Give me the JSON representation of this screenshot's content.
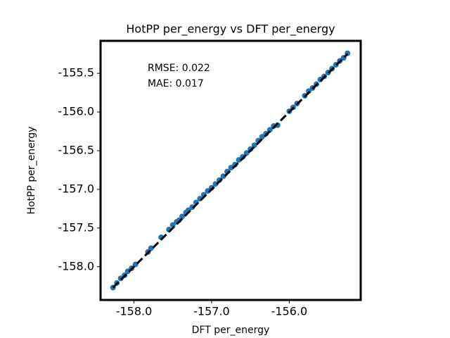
{
  "chart_data": {
    "type": "scatter",
    "title": "HotPP per_energy vs DFT per_energy",
    "x_label": "DFT  per_energy",
    "y_label": "HotPP per_energy",
    "annotations": [
      "RMSE: 0.022",
      "MAE: 0.017"
    ],
    "color": "#1f77b4",
    "identity_line": true,
    "x": [
      -158.27,
      -158.22,
      -158.17,
      -158.12,
      -158.08,
      -158.03,
      -157.98,
      -157.82,
      -157.78,
      -157.65,
      -157.55,
      -157.5,
      -157.45,
      -157.42,
      -157.38,
      -157.33,
      -157.3,
      -157.25,
      -157.2,
      -157.15,
      -157.1,
      -157.05,
      -157.0,
      -156.95,
      -156.9,
      -156.85,
      -156.8,
      -156.75,
      -156.7,
      -156.65,
      -156.6,
      -156.55,
      -156.5,
      -156.45,
      -156.4,
      -156.35,
      -156.3,
      -156.25,
      -156.2,
      -156.15,
      -156.0,
      -155.95,
      -155.9,
      -155.8,
      -155.75,
      -155.7,
      -155.65,
      -155.6,
      -155.55,
      -155.5,
      -155.45,
      -155.4,
      -155.35,
      -155.3,
      -155.25
    ],
    "y": [
      -158.27,
      -158.21,
      -158.15,
      -158.11,
      -158.06,
      -158.02,
      -157.97,
      -157.81,
      -157.76,
      -157.62,
      -157.52,
      -157.46,
      -157.42,
      -157.4,
      -157.35,
      -157.3,
      -157.27,
      -157.23,
      -157.17,
      -157.12,
      -157.07,
      -157.02,
      -156.98,
      -156.93,
      -156.88,
      -156.83,
      -156.77,
      -156.72,
      -156.68,
      -156.62,
      -156.58,
      -156.53,
      -156.48,
      -156.43,
      -156.37,
      -156.32,
      -156.28,
      -156.23,
      -156.18,
      -156.17,
      -155.99,
      -155.94,
      -155.89,
      -155.79,
      -155.73,
      -155.69,
      -155.64,
      -155.58,
      -155.54,
      -155.49,
      -155.44,
      -155.39,
      -155.34,
      -155.3,
      -155.24
    ],
    "xlim": [
      -158.43,
      -155.08
    ],
    "ylim": [
      -158.43,
      -155.08
    ],
    "xticks": [
      {
        "value": -158,
        "label": "-158.0"
      },
      {
        "value": -157,
        "label": "-157.0"
      },
      {
        "value": -156,
        "label": "-156.0"
      }
    ],
    "yticks": [
      -155.5,
      {
        "value": -156,
        "label": "-156.0"
      },
      -156.5,
      {
        "value": -157,
        "label": "-157.0"
      },
      -157.5,
      {
        "value": -158,
        "label": "-158.0"
      }
    ]
  }
}
